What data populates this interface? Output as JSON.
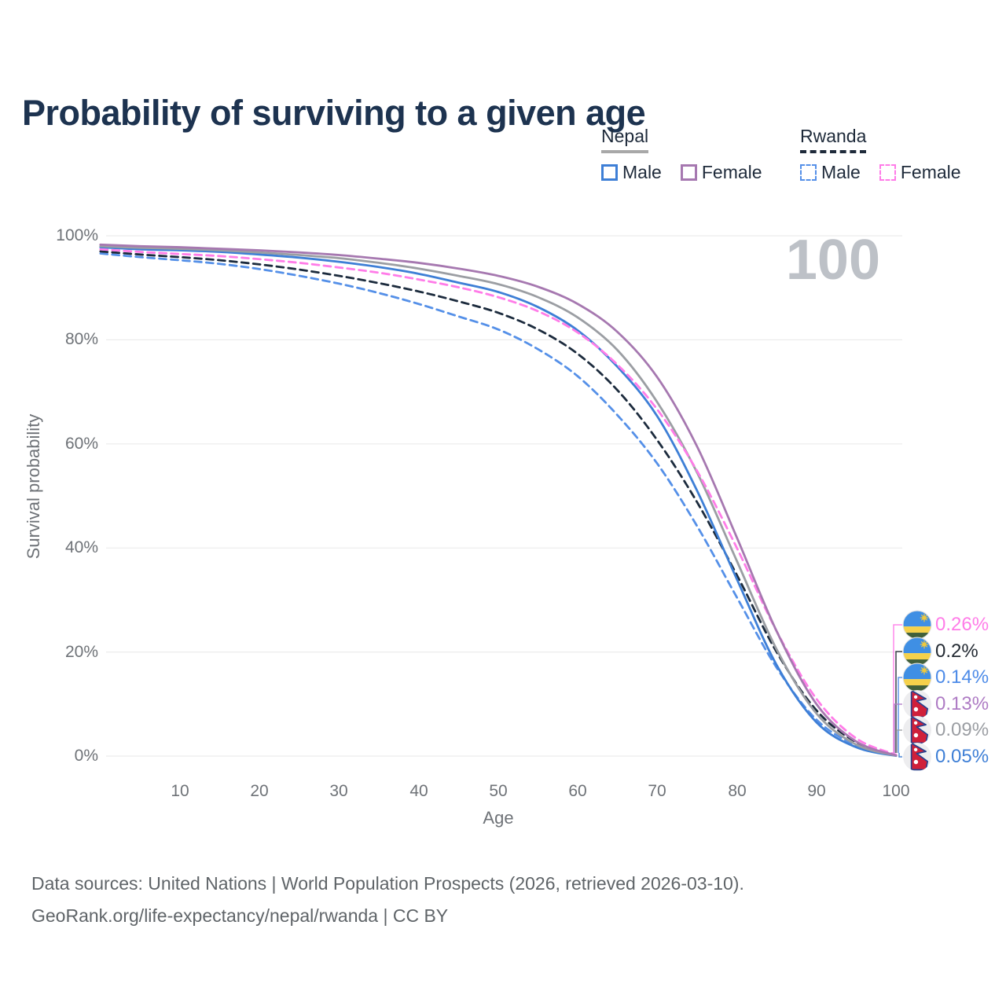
{
  "title": "Probability of surviving to a given age",
  "watermark": "100",
  "legend": {
    "nepal": {
      "title": "Nepal",
      "male": "Male",
      "female": "Female"
    },
    "rwanda": {
      "title": "Rwanda",
      "male": "Male",
      "female": "Female"
    }
  },
  "y_axis": {
    "label": "Survival probability",
    "ticks": [
      "100%",
      "80%",
      "60%",
      "40%",
      "20%",
      "0%"
    ]
  },
  "x_axis": {
    "label": "Age",
    "ticks": [
      "10",
      "20",
      "30",
      "40",
      "50",
      "60",
      "70",
      "80",
      "90",
      "100"
    ]
  },
  "end_labels": [
    {
      "country": "Rwanda",
      "flag": "rwanda-flag-icon",
      "value": "0.26%",
      "color": "#ff7ce8"
    },
    {
      "country": "Rwanda",
      "flag": "rwanda-flag-icon",
      "value": "0.2%",
      "color": "#232a33"
    },
    {
      "country": "Rwanda",
      "flag": "rwanda-flag-icon",
      "value": "0.14%",
      "color": "#4d8be8"
    },
    {
      "country": "Nepal",
      "flag": "nepal-flag-icon",
      "value": "0.13%",
      "color": "#ae7bc4"
    },
    {
      "country": "Nepal",
      "flag": "nepal-flag-icon",
      "value": "0.09%",
      "color": "#9b9ea3"
    },
    {
      "country": "Nepal",
      "flag": "nepal-flag-icon",
      "value": "0.05%",
      "color": "#3e7fd6"
    }
  ],
  "footer": {
    "line1": "Data sources: United Nations | World Population Prospects (2026, retrieved 2026-03-10).",
    "line2": "GeoRank.org/life-expectancy/nepal/rwanda | CC BY"
  },
  "colors": {
    "title_text": "#1d3350",
    "axis_text": "#6e7277",
    "grid": "#ececec",
    "watermark": "#bdc1c7"
  },
  "chart_data": {
    "type": "line",
    "title": "Probability of surviving to a given age",
    "xlabel": "Age",
    "ylabel": "Survival probability",
    "x_range": [
      0,
      100
    ],
    "y_range_percent": [
      0,
      100
    ],
    "grid": "horizontal only",
    "legend_position": "top-right",
    "ages": [
      0,
      5,
      10,
      15,
      20,
      25,
      30,
      35,
      40,
      45,
      50,
      55,
      60,
      65,
      70,
      75,
      80,
      85,
      90,
      95,
      100
    ],
    "series": [
      {
        "id": "rwanda_male",
        "name": "Rwanda Male",
        "style": "dashed",
        "color": "#5590e8",
        "values": [
          96.6,
          95.9,
          95.3,
          94.6,
          93.6,
          92.3,
          90.8,
          89.0,
          86.9,
          84.5,
          82.0,
          78.2,
          73.0,
          65.5,
          56.2,
          44.2,
          30.5,
          17.0,
          7.0,
          2.1,
          0.14
        ]
      },
      {
        "id": "rwanda_total",
        "name": "Rwanda",
        "style": "dashed",
        "color": "#1c2b3d",
        "values": [
          97.0,
          96.4,
          95.9,
          95.3,
          94.5,
          93.5,
          92.3,
          90.9,
          89.3,
          87.4,
          85.2,
          82.0,
          77.3,
          70.3,
          60.7,
          48.8,
          34.8,
          20.0,
          8.8,
          2.7,
          0.2
        ]
      },
      {
        "id": "nepal_male",
        "name": "Nepal Male",
        "style": "solid",
        "color": "#3e7fd6",
        "values": [
          97.8,
          97.4,
          97.2,
          96.9,
          96.4,
          95.8,
          95.0,
          94.0,
          92.7,
          91.0,
          89.2,
          86.3,
          81.8,
          74.8,
          65.3,
          51.0,
          34.0,
          17.5,
          6.5,
          1.7,
          0.05
        ]
      },
      {
        "id": "nepal_total",
        "name": "Nepal",
        "style": "solid",
        "color": "#9b9ea3",
        "values": [
          98.0,
          97.7,
          97.5,
          97.2,
          96.8,
          96.3,
          95.7,
          94.8,
          93.7,
          92.3,
          90.7,
          88.2,
          84.3,
          78.0,
          68.0,
          54.5,
          37.5,
          20.5,
          8.2,
          2.2,
          0.09
        ]
      },
      {
        "id": "rwanda_female",
        "name": "Rwanda Female",
        "style": "dashed",
        "color": "#ff7ce8",
        "values": [
          97.4,
          96.9,
          96.5,
          96.1,
          95.5,
          94.8,
          93.9,
          92.9,
          91.6,
          90.1,
          88.2,
          85.5,
          81.4,
          75.2,
          66.6,
          54.8,
          40.0,
          24.0,
          11.0,
          3.4,
          0.26
        ]
      },
      {
        "id": "nepal_female",
        "name": "Nepal Female",
        "style": "solid",
        "color": "#a678b0",
        "values": [
          98.3,
          98.0,
          97.8,
          97.5,
          97.2,
          96.8,
          96.3,
          95.6,
          94.8,
          93.7,
          92.3,
          90.2,
          86.9,
          81.5,
          72.8,
          59.5,
          42.0,
          24.0,
          10.0,
          2.8,
          0.13
        ]
      }
    ]
  }
}
